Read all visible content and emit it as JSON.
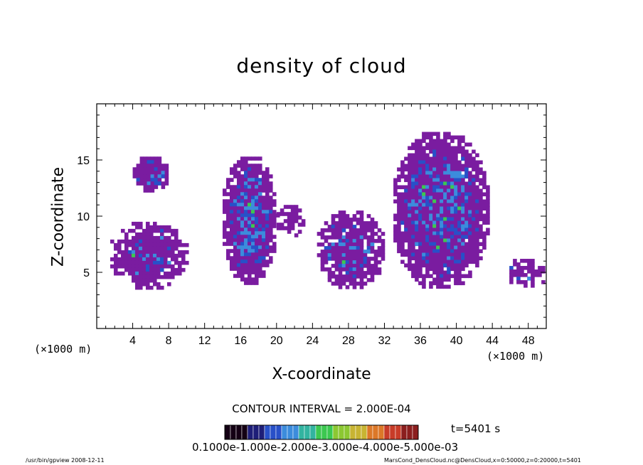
{
  "chart_data": {
    "type": "heatmap",
    "title": "density of cloud",
    "xlabel": "X-coordinate",
    "ylabel": "Z-coordinate",
    "x_unit_label": "(×1000 m)",
    "xlim": [
      0,
      50
    ],
    "ylim": [
      0,
      20
    ],
    "xticks": [
      "4",
      "8",
      "12",
      "16",
      "20",
      "24",
      "28",
      "32",
      "36",
      "40",
      "44",
      "48"
    ],
    "yticks": [
      "5",
      "10",
      "15"
    ],
    "contour_interval": "CONTOUR INTERVAL = 2.000E-04",
    "time_label": "t=5401 s",
    "colorbar_ticks": "0.1000e-1.000e-2.000e-3.000e-4.000e-5.000e-03",
    "colorbar_colors": [
      "#140014",
      "#1e1e78",
      "#2850c8",
      "#3c8cdc",
      "#32b4a0",
      "#3cc850",
      "#8cc832",
      "#c8b432",
      "#dc7828",
      "#c83c28",
      "#8c1e1e"
    ],
    "cloud_regions": [
      {
        "x": [
          4,
          8
        ],
        "z": [
          12.2,
          15.3
        ],
        "level": "high"
      },
      {
        "x": [
          1.5,
          10
        ],
        "z": [
          3.6,
          9.5
        ],
        "level": "mid"
      },
      {
        "x": [
          14,
          20
        ],
        "z": [
          4,
          15.3
        ],
        "level": "high"
      },
      {
        "x": [
          20,
          23
        ],
        "z": [
          8,
          11
        ],
        "level": "low"
      },
      {
        "x": [
          24.5,
          32
        ],
        "z": [
          3.6,
          10.5
        ],
        "level": "mid"
      },
      {
        "x": [
          33,
          43.5
        ],
        "z": [
          3.6,
          17.5
        ],
        "level": "high"
      },
      {
        "x": [
          45.5,
          50
        ],
        "z": [
          3.6,
          6.2
        ],
        "level": "low"
      }
    ],
    "grid": false
  },
  "footer": {
    "left": "/usr/bin/gpview  2008-12-11",
    "right": "MarsCond_DensCloud.nc@DensCloud,x=0:50000,z=0:20000,t=5401"
  }
}
